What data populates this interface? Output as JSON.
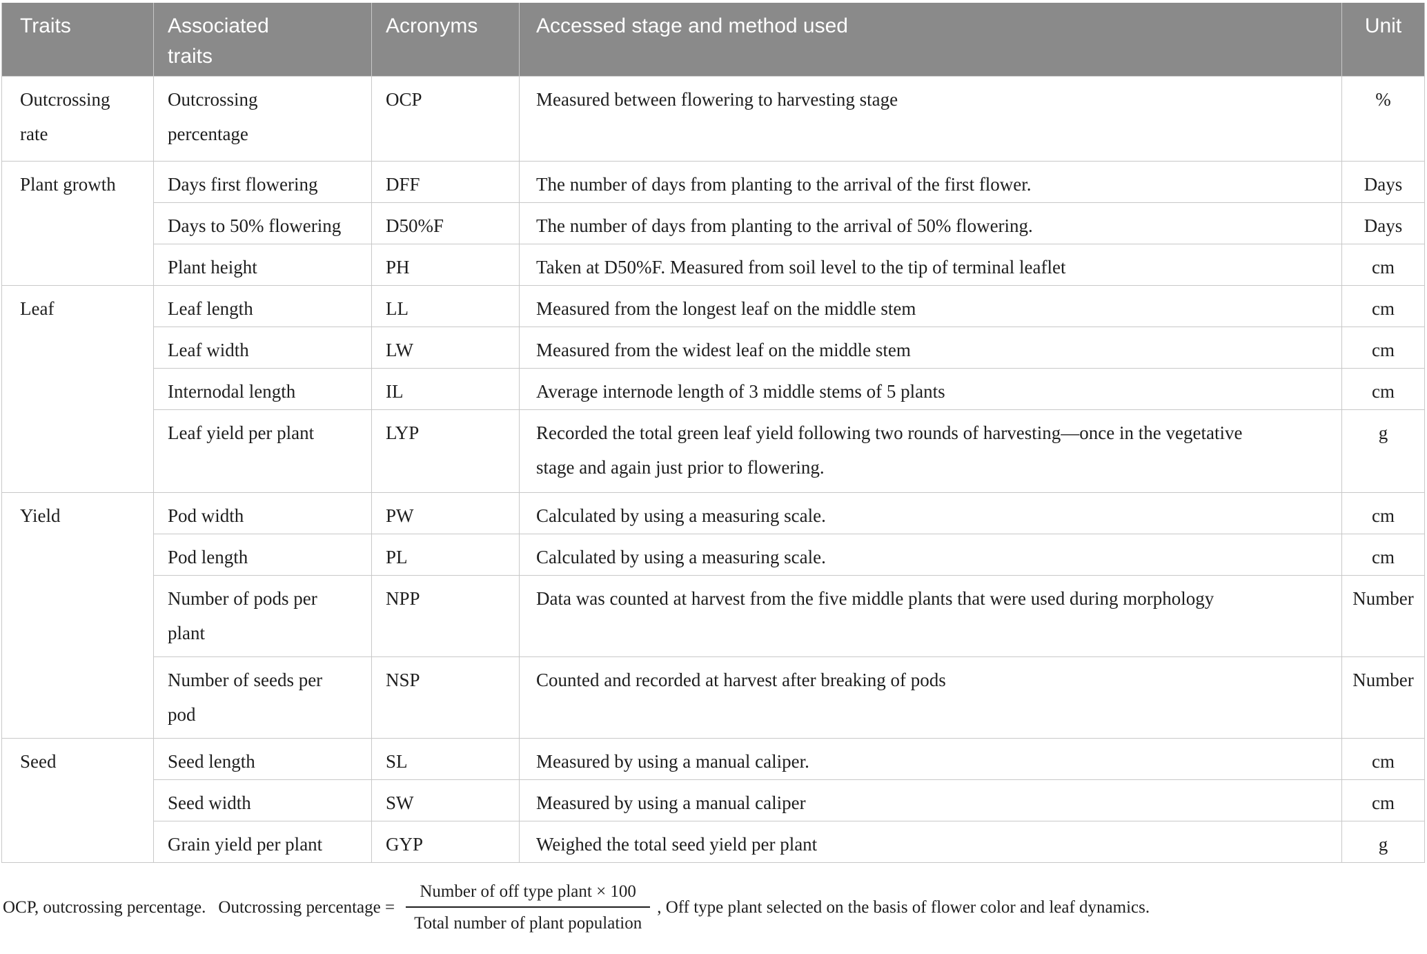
{
  "colors": {
    "header_bg": "#8a8a8a",
    "header_text": "#ffffff",
    "border": "#c8c8c8",
    "body_text": "#1e1e1e"
  },
  "table": {
    "headers": {
      "traits": "Traits",
      "associated": "Associated\ntraits",
      "acronyms": "Acronyms",
      "method": "Accessed stage and method used",
      "unit": "Unit"
    },
    "groups": [
      {
        "trait": "Outcrossing\nrate",
        "rows": [
          {
            "associated": "Outcrossing\npercentage",
            "acronym": "OCP",
            "method": "Measured between flowering to harvesting stage",
            "unit": "%"
          }
        ]
      },
      {
        "trait": "Plant growth",
        "rows": [
          {
            "associated": "Days first flowering",
            "acronym": "DFF",
            "method": "The number of days from planting to the arrival of the first flower.",
            "unit": "Days"
          },
          {
            "associated": "Days to 50% flowering",
            "acronym": "D50%F",
            "method": "The number of days from planting to the arrival of 50% flowering.",
            "unit": "Days"
          },
          {
            "associated": "Plant height",
            "acronym": "PH",
            "method": "Taken at D50%F. Measured from soil level to the tip of terminal leaflet",
            "unit": "cm"
          }
        ]
      },
      {
        "trait": "Leaf",
        "rows": [
          {
            "associated": "Leaf length",
            "acronym": "LL",
            "method": "Measured from the longest leaf on the middle stem",
            "unit": "cm"
          },
          {
            "associated": "Leaf width",
            "acronym": "LW",
            "method": "Measured from the widest leaf on the middle stem",
            "unit": "cm"
          },
          {
            "associated": "Internodal length",
            "acronym": "IL",
            "method": "Average internode length of 3 middle stems of 5 plants",
            "unit": "cm"
          },
          {
            "associated": "Leaf yield per plant",
            "acronym": "LYP",
            "method": "Recorded the total green leaf yield following two rounds of harvesting—once in the vegetative\nstage and again just prior to flowering.",
            "unit": "g"
          }
        ]
      },
      {
        "trait": "Yield",
        "rows": [
          {
            "associated": "Pod width",
            "acronym": "PW",
            "method": "Calculated by using a measuring scale.",
            "unit": "cm"
          },
          {
            "associated": "Pod length",
            "acronym": "PL",
            "method": "Calculated by using a measuring scale.",
            "unit": "cm"
          },
          {
            "associated": "Number of pods per\nplant",
            "acronym": "NPP",
            "method": "Data was counted at harvest from the five middle plants that were used during morphology",
            "unit": "Number"
          },
          {
            "associated": "Number of seeds per\npod",
            "acronym": "NSP",
            "method": "Counted and recorded at harvest after breaking of pods",
            "unit": "Number"
          }
        ]
      },
      {
        "trait": "Seed",
        "rows": [
          {
            "associated": "Seed length",
            "acronym": "SL",
            "method": "Measured by using a manual caliper.",
            "unit": "cm"
          },
          {
            "associated": "Seed width",
            "acronym": "SW",
            "method": "Measured by using a manual caliper",
            "unit": "cm"
          },
          {
            "associated": "Grain yield per plant",
            "acronym": "GYP",
            "method": "Weighed the total seed yield per plant",
            "unit": "g"
          }
        ]
      }
    ]
  },
  "footnote": {
    "prefix": "OCP, outcrossing percentage.",
    "formula_label": "Outcrossing percentage =",
    "numerator": "Number of off type plant × 100",
    "denominator": "Total number of plant population",
    "suffix": ", Off type plant selected on the basis of flower color and leaf dynamics."
  }
}
